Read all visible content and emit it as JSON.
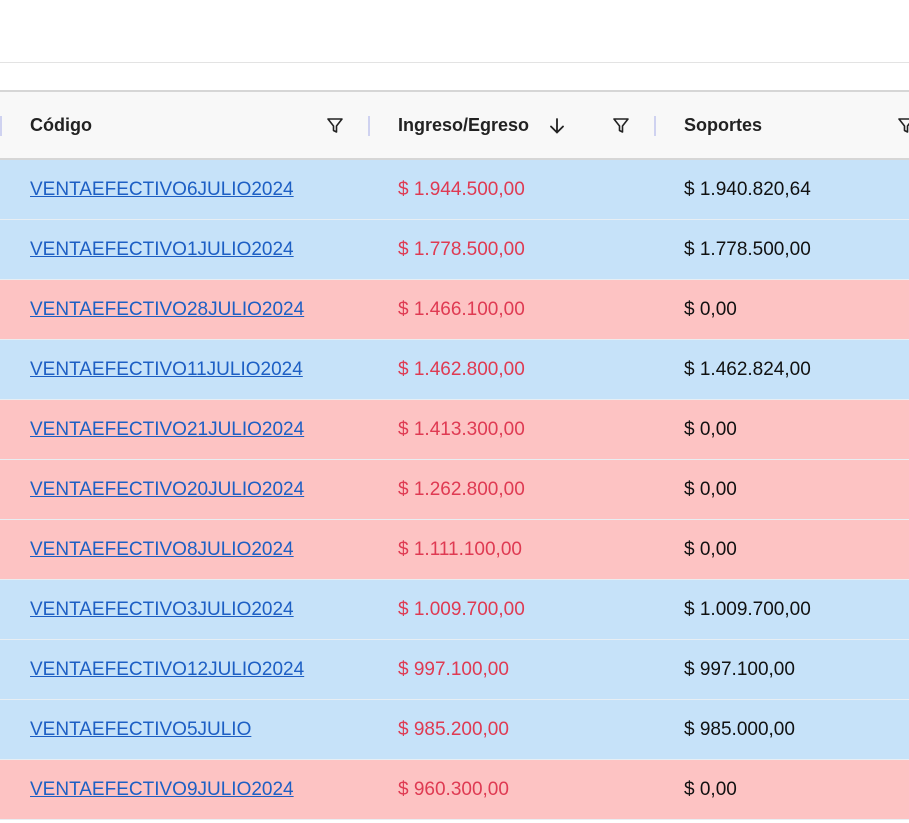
{
  "table": {
    "headers": [
      "Código",
      "Ingreso/Egreso",
      "Soportes"
    ],
    "rows": [
      [
        "VENTAEFECTIVO6JULIO2024",
        "$ 1.944.500,00",
        "$ 1.940.820,64"
      ],
      [
        "VENTAEFECTIVO1JULIO2024",
        "$ 1.778.500,00",
        "$ 1.778.500,00"
      ],
      [
        "VENTAEFECTIVO28JULIO2024",
        "$ 1.466.100,00",
        "$ 0,00"
      ],
      [
        "VENTAEFECTIVO11JULIO2024",
        "$ 1.462.800,00",
        "$ 1.462.824,00"
      ],
      [
        "VENTAEFECTIVO21JULIO2024",
        "$ 1.413.300,00",
        "$ 0,00"
      ],
      [
        "VENTAEFECTIVO20JULIO2024",
        "$ 1.262.800,00",
        "$ 0,00"
      ],
      [
        "VENTAEFECTIVO8JULIO2024",
        "$ 1.111.100,00",
        "$ 0,00"
      ],
      [
        "VENTAEFECTIVO3JULIO2024",
        "$ 1.009.700,00",
        "$ 1.009.700,00"
      ],
      [
        "VENTAEFECTIVO12JULIO2024",
        "$ 997.100,00",
        "$ 997.100,00"
      ],
      [
        "VENTAEFECTIVO5JULIO",
        "$ 985.200,00",
        "$ 985.000,00"
      ],
      [
        "VENTAEFECTIVO9JULIO2024",
        "$ 960.300,00",
        "$ 0,00"
      ]
    ],
    "row_colors": [
      "#c6e2f9",
      "#c6e2f9",
      "#fdc3c3",
      "#c6e2f9",
      "#fdc3c3",
      "#fdc3c3",
      "#fdc3c3",
      "#c6e2f9",
      "#c6e2f9",
      "#c6e2f9",
      "#fdc3c3"
    ]
  }
}
